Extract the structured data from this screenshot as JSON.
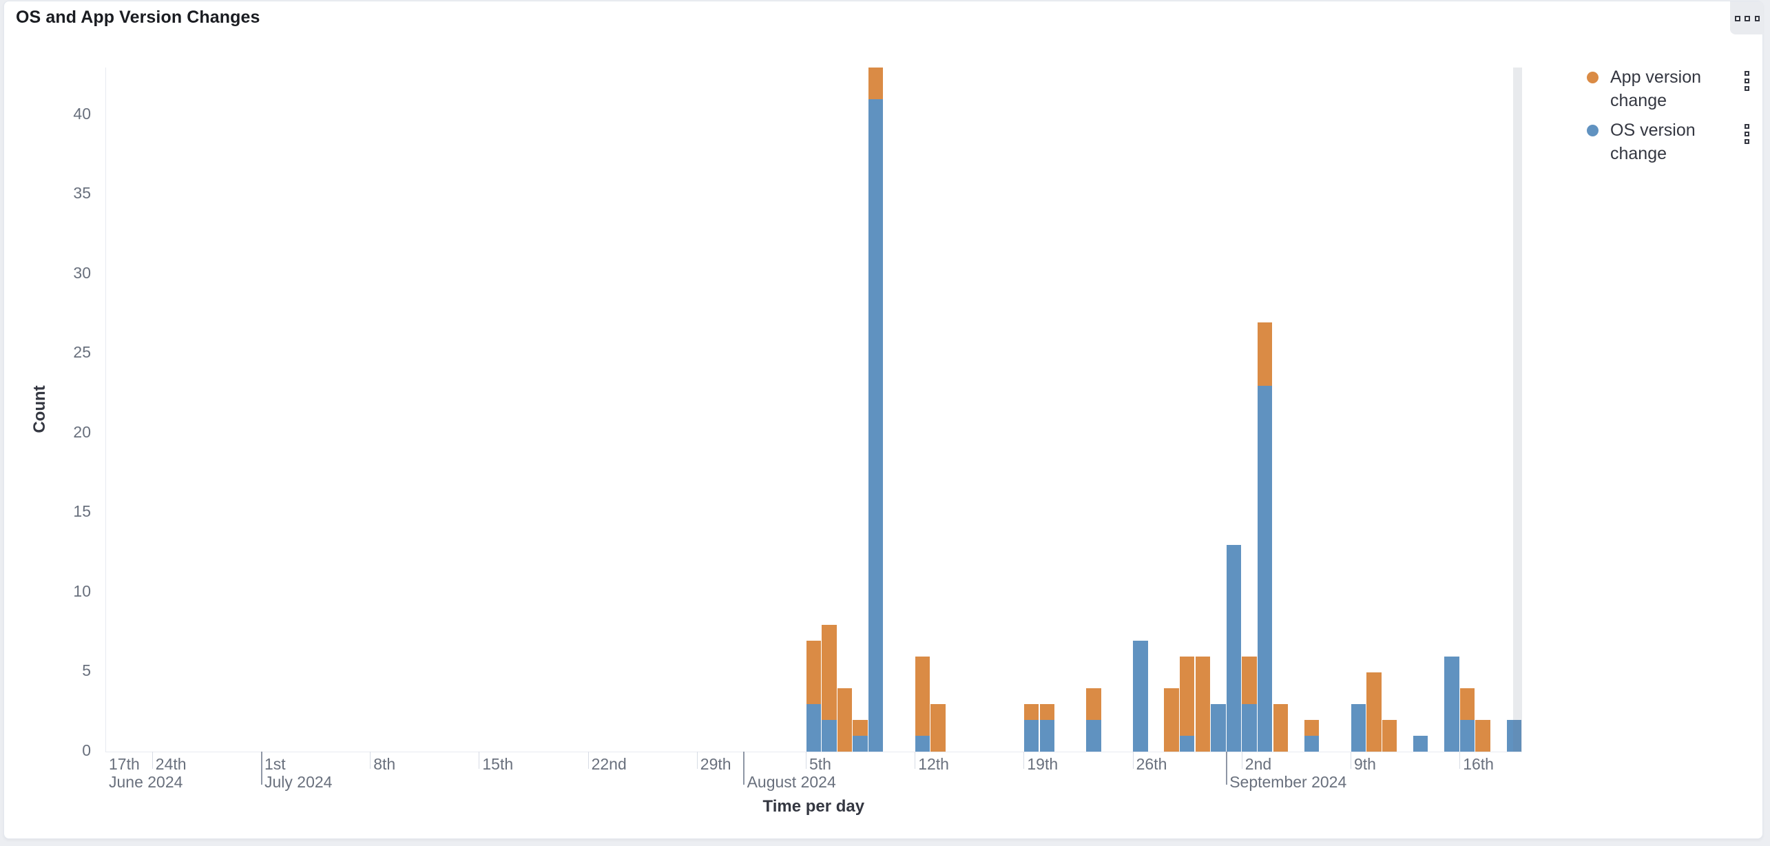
{
  "panel": {
    "title": "OS and App Version Changes",
    "menu_icon": "ellipsis-squares-icon"
  },
  "chart_data": {
    "type": "bar",
    "stacked": true,
    "title": "OS and App Version Changes",
    "xlabel": "Time per day",
    "ylabel": "Count",
    "x_domain": {
      "start": "2024-06-21",
      "end": "2024-09-20"
    },
    "x_bucket": "1 day",
    "y_ticks": [
      0,
      5,
      10,
      15,
      20,
      25,
      30,
      35,
      40
    ],
    "y_max": 43,
    "grid": "off",
    "legend_position": "right",
    "series": [
      {
        "name": "App version change",
        "color": "#DA8B45",
        "stack_level": 2,
        "points": [
          [
            "2024-08-05",
            4
          ],
          [
            "2024-08-06",
            6
          ],
          [
            "2024-08-07",
            4
          ],
          [
            "2024-08-08",
            1
          ],
          [
            "2024-08-09",
            2
          ],
          [
            "2024-08-12",
            5
          ],
          [
            "2024-08-13",
            3
          ],
          [
            "2024-08-19",
            1
          ],
          [
            "2024-08-20",
            1
          ],
          [
            "2024-08-23",
            2
          ],
          [
            "2024-08-28",
            4
          ],
          [
            "2024-08-29",
            5
          ],
          [
            "2024-08-30",
            6
          ],
          [
            "2024-09-02",
            3
          ],
          [
            "2024-09-03",
            4
          ],
          [
            "2024-09-04",
            3
          ],
          [
            "2024-09-06",
            1
          ],
          [
            "2024-09-10",
            5
          ],
          [
            "2024-09-11",
            2
          ],
          [
            "2024-09-16",
            2
          ],
          [
            "2024-09-17",
            2
          ]
        ]
      },
      {
        "name": "OS version change",
        "color": "#6092C0",
        "stack_level": 1,
        "points": [
          [
            "2024-08-05",
            3
          ],
          [
            "2024-08-06",
            2
          ],
          [
            "2024-08-08",
            1
          ],
          [
            "2024-08-09",
            41
          ],
          [
            "2024-08-12",
            1
          ],
          [
            "2024-08-19",
            2
          ],
          [
            "2024-08-20",
            2
          ],
          [
            "2024-08-23",
            2
          ],
          [
            "2024-08-26",
            7
          ],
          [
            "2024-08-29",
            1
          ],
          [
            "2024-08-31",
            3
          ],
          [
            "2024-09-01",
            13
          ],
          [
            "2024-09-02",
            3
          ],
          [
            "2024-09-03",
            23
          ],
          [
            "2024-09-06",
            1
          ],
          [
            "2024-09-09",
            3
          ],
          [
            "2024-09-13",
            1
          ],
          [
            "2024-09-15",
            6
          ],
          [
            "2024-09-16",
            2
          ],
          [
            "2024-09-19",
            2
          ]
        ]
      }
    ],
    "x_ticks": [
      {
        "label": "17th",
        "date": "2024-06-17"
      },
      {
        "label": "24th",
        "date": "2024-06-24"
      },
      {
        "label": "1st",
        "date": "2024-07-01"
      },
      {
        "label": "8th",
        "date": "2024-07-08"
      },
      {
        "label": "15th",
        "date": "2024-07-15"
      },
      {
        "label": "22nd",
        "date": "2024-07-22"
      },
      {
        "label": "29th",
        "date": "2024-07-29"
      },
      {
        "label": "5th",
        "date": "2024-08-05"
      },
      {
        "label": "12th",
        "date": "2024-08-12"
      },
      {
        "label": "19th",
        "date": "2024-08-19"
      },
      {
        "label": "26th",
        "date": "2024-08-26"
      },
      {
        "label": "2nd",
        "date": "2024-09-02"
      },
      {
        "label": "9th",
        "date": "2024-09-09"
      },
      {
        "label": "16th",
        "date": "2024-09-16"
      }
    ],
    "month_labels": [
      {
        "label": "June 2024",
        "date": "2024-06-01"
      },
      {
        "label": "July 2024",
        "date": "2024-07-01"
      },
      {
        "label": "August 2024",
        "date": "2024-08-01"
      },
      {
        "label": "September 2024",
        "date": "2024-09-01"
      }
    ],
    "partial_bucket_marker": {
      "start": "2024-09-19T11:00:00",
      "end": "2024-09-20T00:00:00"
    }
  }
}
